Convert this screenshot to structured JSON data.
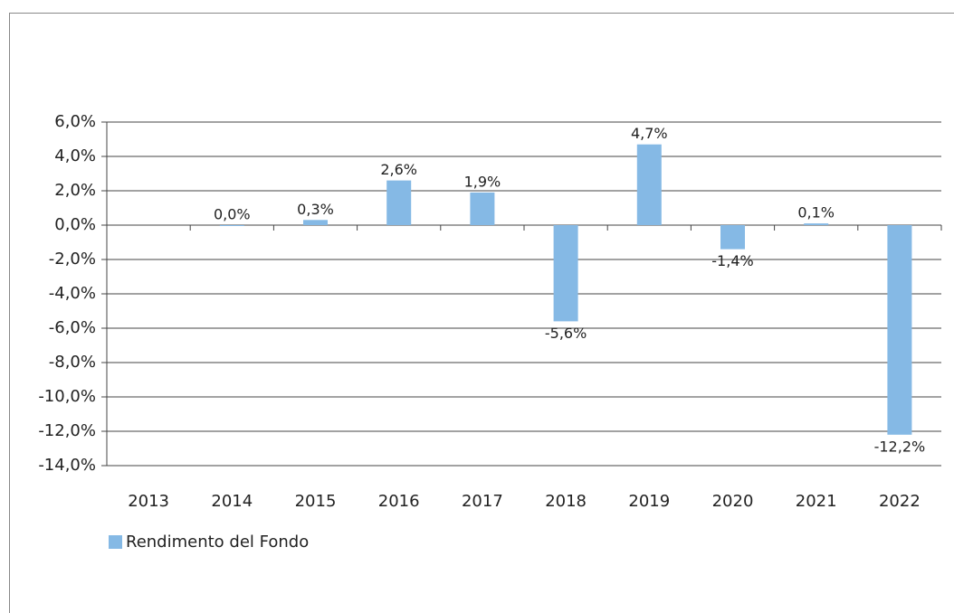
{
  "chart_data": {
    "type": "bar",
    "categories": [
      "2013",
      "2014",
      "2015",
      "2016",
      "2017",
      "2018",
      "2019",
      "2020",
      "2021",
      "2022"
    ],
    "series": [
      {
        "name": "Rendimento del Fondo",
        "color": "#85b9e5",
        "values": [
          null,
          0.0,
          0.3,
          2.6,
          1.9,
          -5.6,
          4.7,
          -1.4,
          0.1,
          -12.2
        ],
        "value_labels": [
          null,
          "0,0%",
          "0,3%",
          "2,6%",
          "1,9%",
          "-5,6%",
          "4,7%",
          "-1,4%",
          "0,1%",
          "-12,2%"
        ]
      }
    ],
    "ylim": [
      -14,
      6
    ],
    "yticks": [
      {
        "value": 6,
        "label": "6,0%"
      },
      {
        "value": 4,
        "label": "4,0%"
      },
      {
        "value": 2,
        "label": "2,0%"
      },
      {
        "value": 0,
        "label": "0,0%"
      },
      {
        "value": -2,
        "label": "-2,0%"
      },
      {
        "value": -4,
        "label": "-4,0%"
      },
      {
        "value": -6,
        "label": "-6,0%"
      },
      {
        "value": -8,
        "label": "-8,0%"
      },
      {
        "value": -10,
        "label": "-10,0%"
      },
      {
        "value": -12,
        "label": "-12,0%"
      },
      {
        "value": -14,
        "label": "-14,0%"
      }
    ],
    "grid": true,
    "legend": "bottom-left"
  }
}
